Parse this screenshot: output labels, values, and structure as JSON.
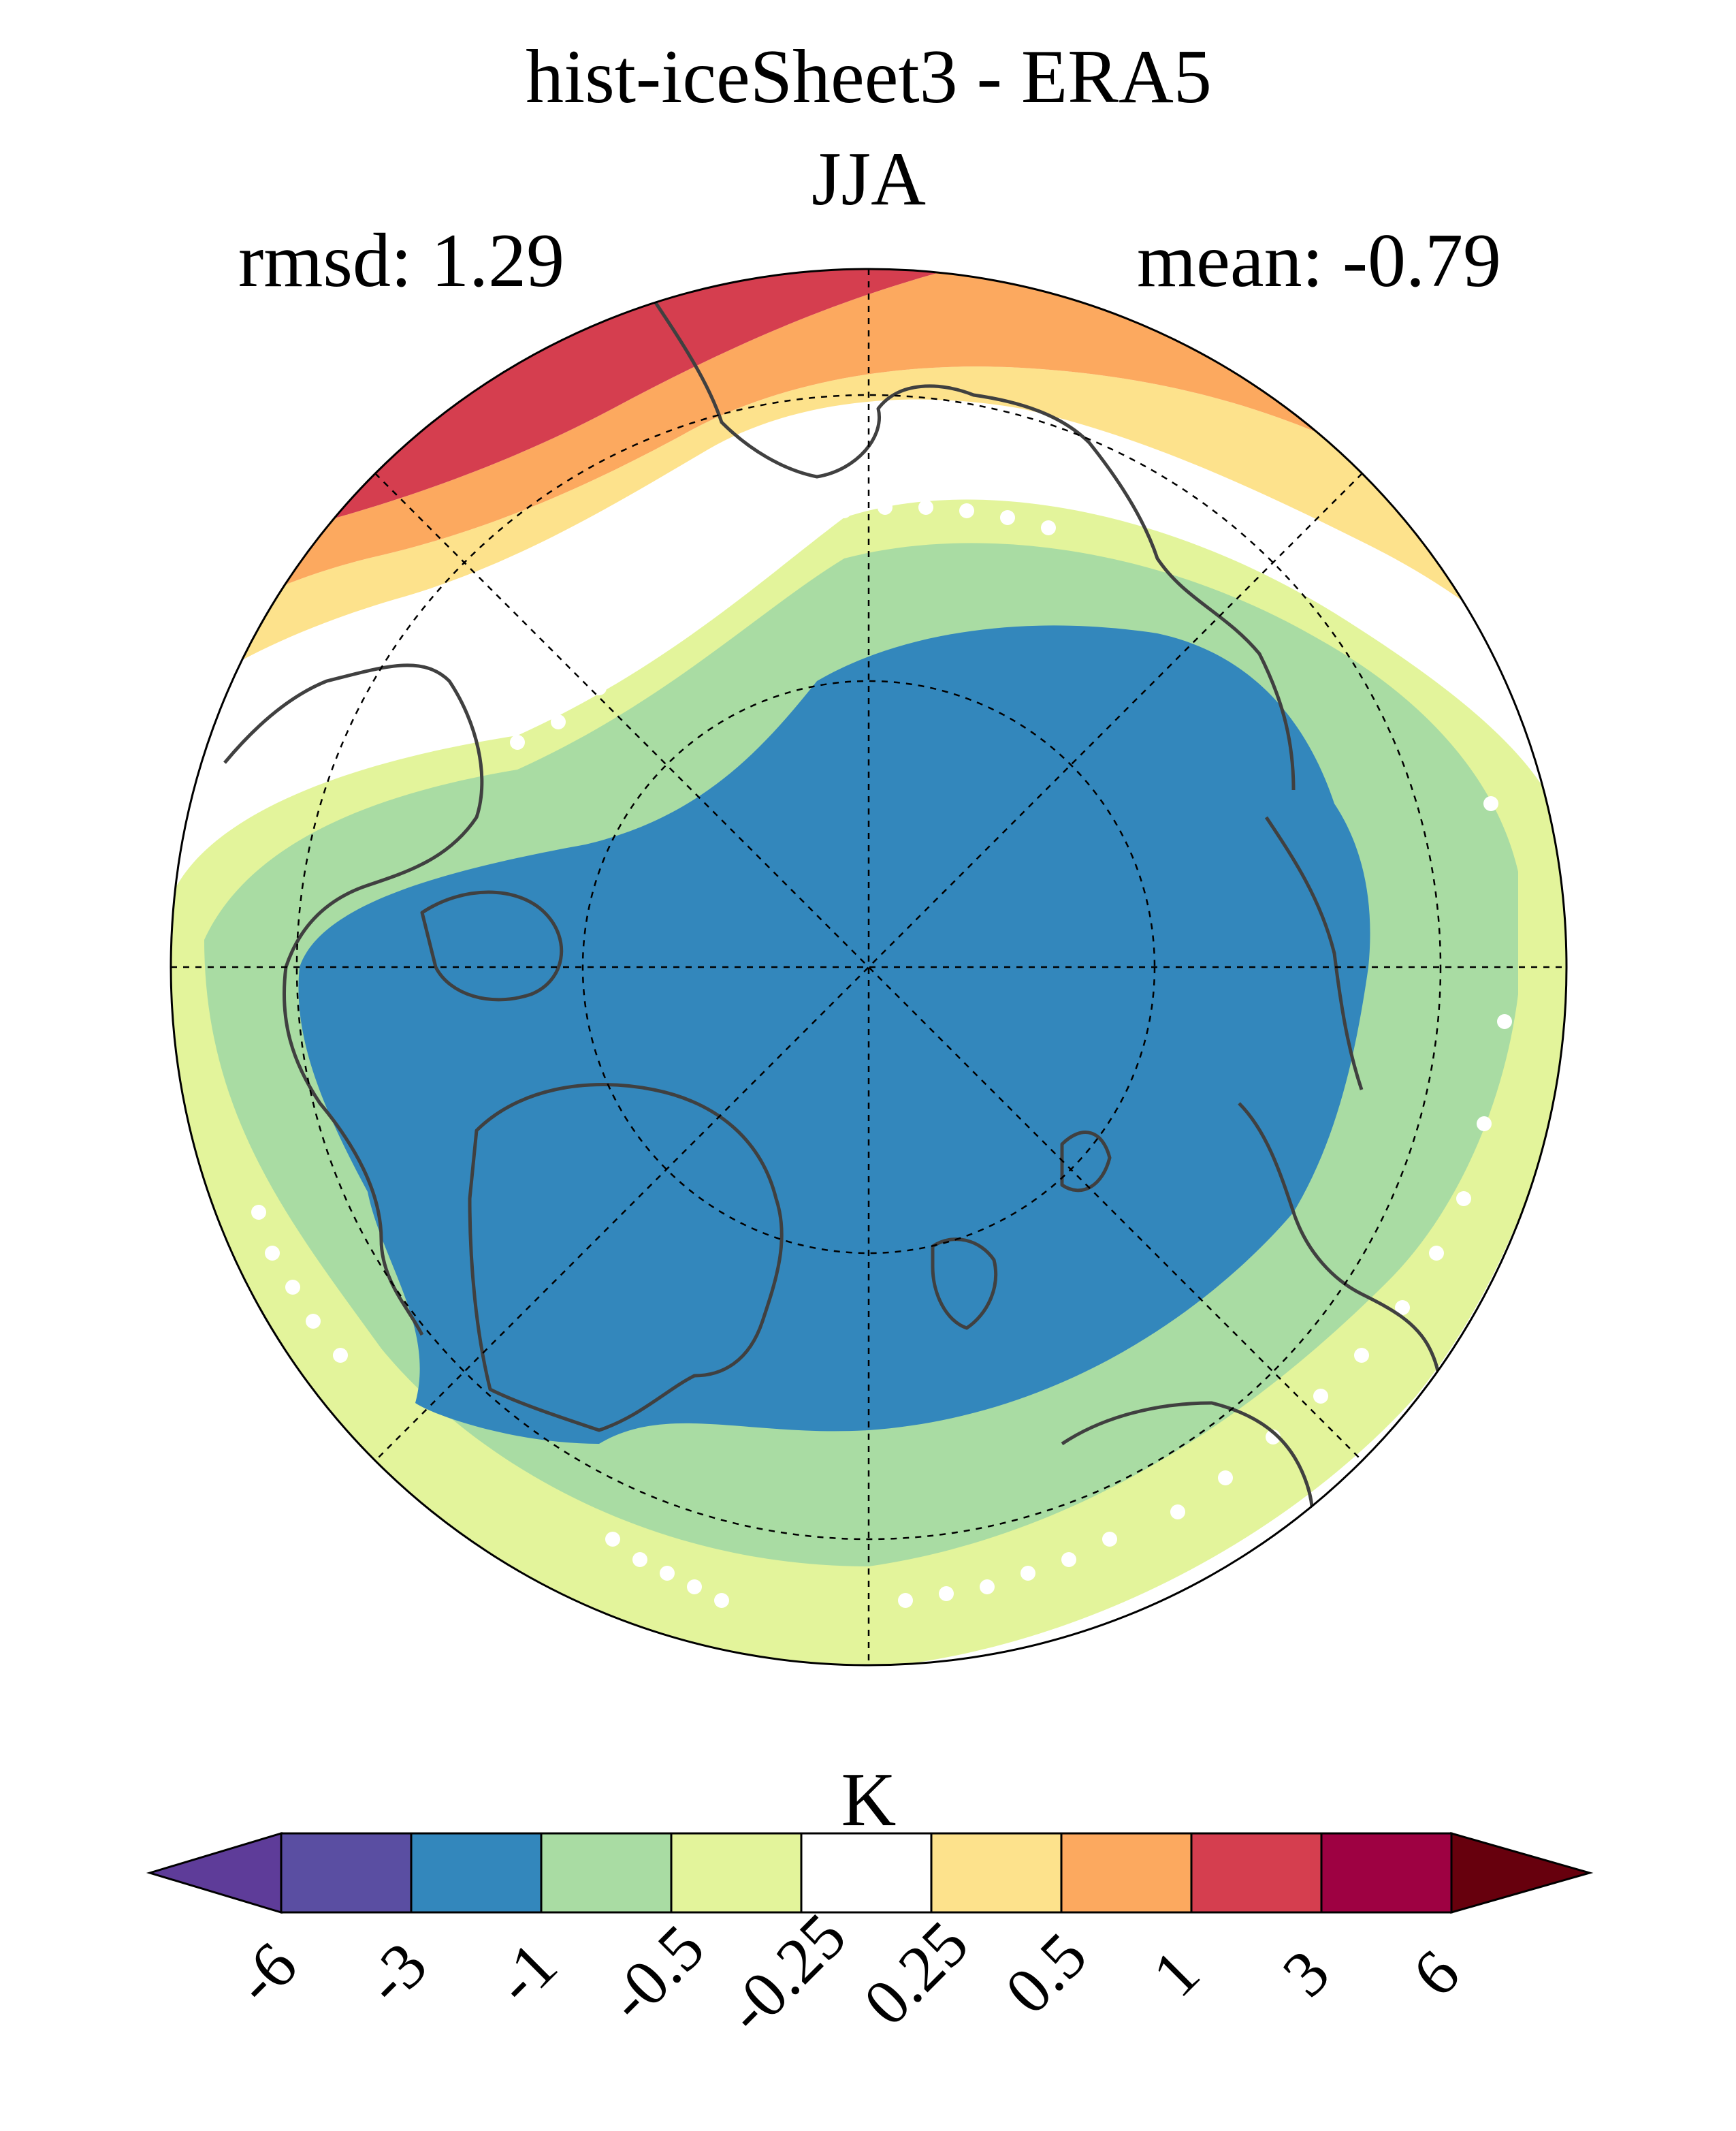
{
  "title": "hist-iceSheet3 - ERA5",
  "subtitle": "JJA",
  "stats": {
    "rmsd": "rmsd: 1.29",
    "mean": "mean: -0.79"
  },
  "colorbar": {
    "unit": "K",
    "ticks": [
      "-6",
      "-3",
      "-1",
      "-0.5",
      "-0.25",
      "0.25",
      "0.5",
      "1",
      "3",
      "6"
    ],
    "colors": [
      "#5e3c99",
      "#5a4ea2",
      "#3387bc",
      "#a9dca3",
      "#e3f49b",
      "#ffffff",
      "#fde28c",
      "#fca95f",
      "#d53e4f",
      "#9e0142",
      "#67000d"
    ]
  }
}
